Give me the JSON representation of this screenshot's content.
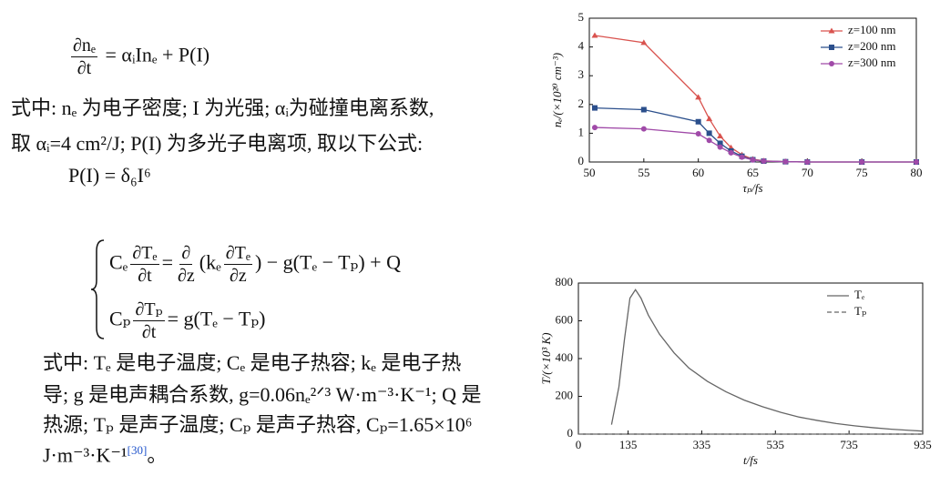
{
  "equation_1": {
    "numerator": "∂nₑ",
    "denominator": "∂t",
    "rhs": "= αᵢInₑ + P(I)"
  },
  "paragraph_1": [
    "式中: nₑ 为电子密度; I 为光强; αᵢ为碰撞电离系数,",
    "取 αᵢ=4 cm²/J; P(I) 为多光子电离项, 取以下公式:"
  ],
  "equation_2": "P(I) = δ₆I⁶",
  "system": {
    "line_1": [
      "Cₑ",
      {
        "numerator": "∂Tₑ",
        "denominator": "∂t"
      },
      "=",
      {
        "numerator": "∂",
        "denominator": "∂z"
      },
      "(kₑ",
      {
        "numerator": "∂Tₑ",
        "denominator": "∂z"
      },
      ") − g(Tₑ − Tₚ) + Q"
    ],
    "line_2": [
      "Cₚ",
      {
        "numerator": "∂Tₚ",
        "denominator": "∂t"
      },
      "= g(Tₑ − Tₚ)"
    ]
  },
  "paragraph_2": {
    "lines": [
      "式中: Tₑ 是电子温度; Cₑ 是电子热容; kₑ 是电子热",
      "导; g 是电声耦合系数, g=0.06nₑ²ᐟ³ W·m⁻³·K⁻¹; Q 是",
      "热源; Tₚ 是声子温度; Cₚ 是声子热容, Cₚ=1.65×10⁶",
      "J·m⁻³·K⁻¹"
    ],
    "reference": "[30]",
    "end": "。"
  },
  "chart_data": [
    {
      "type": "line",
      "xlabel": "τₚ/fs",
      "ylabel": "nₑ/(×10²⁰ cm⁻³)",
      "x": [
        50.5,
        55,
        60,
        61,
        62,
        63,
        64,
        65,
        66,
        68,
        70,
        75,
        80
      ],
      "series": [
        {
          "name": "z=100 nm",
          "color": "#d9534f",
          "marker": "triangle",
          "values": [
            4.4,
            4.15,
            2.25,
            1.5,
            0.9,
            0.5,
            0.25,
            0.1,
            0.04,
            0.01,
            0,
            0,
            0
          ]
        },
        {
          "name": "z=200 nm",
          "color": "#2b4f8c",
          "marker": "square",
          "values": [
            1.88,
            1.82,
            1.4,
            1.0,
            0.65,
            0.38,
            0.2,
            0.08,
            0.03,
            0.01,
            0,
            0,
            0
          ]
        },
        {
          "name": "z=300 nm",
          "color": "#a04aa8",
          "marker": "circle",
          "values": [
            1.2,
            1.15,
            0.98,
            0.75,
            0.52,
            0.32,
            0.17,
            0.07,
            0.03,
            0.01,
            0,
            0,
            0
          ]
        }
      ],
      "xlim": [
        50,
        80
      ],
      "xticks": [
        50,
        55,
        60,
        65,
        70,
        75,
        80
      ],
      "ylim": [
        0,
        5
      ],
      "yticks": [
        0,
        1,
        2,
        3,
        4,
        5
      ],
      "legend": "upper right"
    },
    {
      "type": "line",
      "xlabel": "t/fs",
      "ylabel": "T/(×10³ K)",
      "x": [
        0,
        90,
        110,
        125,
        140,
        155,
        170,
        190,
        220,
        260,
        300,
        350,
        400,
        450,
        500,
        550,
        600,
        650,
        700,
        750,
        800,
        850,
        900,
        935
      ],
      "series": [
        {
          "name": "Tₑ",
          "color": "#666666",
          "linestyle": "solid",
          "values": [
            null,
            50,
            250,
            500,
            720,
            765,
            720,
            630,
            530,
            430,
            350,
            280,
            225,
            180,
            145,
            115,
            90,
            72,
            56,
            44,
            34,
            26,
            20,
            16
          ]
        },
        {
          "name": "Tₚ",
          "color": "#666666",
          "linestyle": "dashed",
          "values": [
            0,
            0,
            0,
            0,
            0,
            0,
            0,
            0,
            0,
            0,
            0,
            0,
            0,
            0,
            0,
            0,
            0,
            0,
            0,
            0,
            0,
            0,
            0,
            0
          ]
        }
      ],
      "xlim": [
        0,
        935
      ],
      "xticks": [
        0,
        135,
        335,
        535,
        735,
        935
      ],
      "ylim": [
        0,
        800
      ],
      "yticks": [
        0,
        200,
        400,
        600,
        800
      ],
      "legend": "upper right"
    }
  ]
}
